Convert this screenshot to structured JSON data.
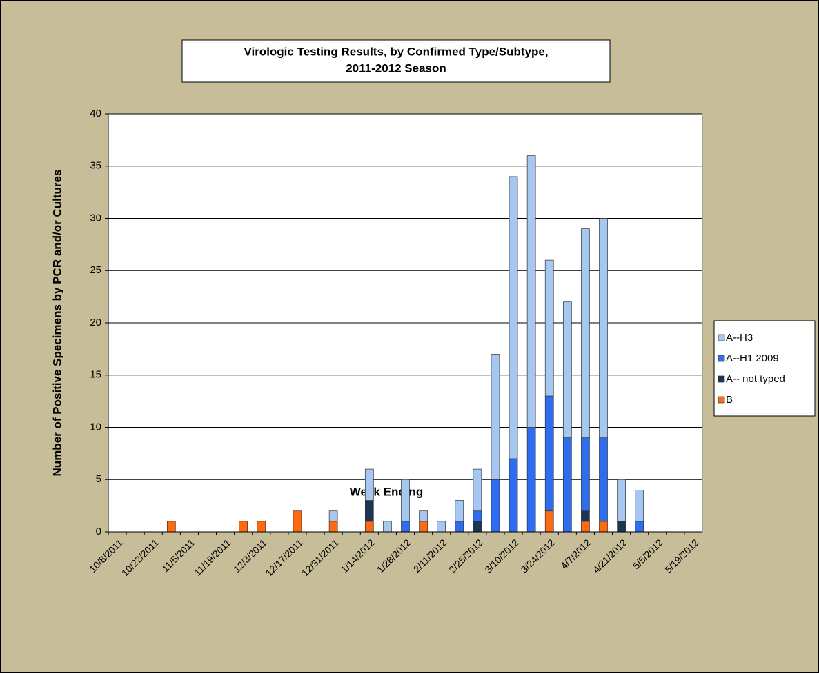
{
  "chart_data": {
    "type": "bar",
    "stacked": true,
    "title": [
      "Virologic Testing Results, by Confirmed Type/Subtype,",
      "2011-2012 Season"
    ],
    "x_label": "Week Ending",
    "y_label": "Number of Positive Specimens by PCR and/or Cultures",
    "categories": [
      "10/8/2011",
      null,
      "10/22/2011",
      null,
      "11/5/2011",
      null,
      "11/19/2011",
      null,
      "12/3/2011",
      null,
      "12/17/2011",
      null,
      "12/31/2011",
      null,
      "1/14/2012",
      null,
      "1/28/2012",
      null,
      "2/11/2012",
      null,
      "2/25/2012",
      null,
      "3/10/2012",
      null,
      "3/24/2012",
      null,
      "4/7/2012",
      null,
      "4/21/2012",
      null,
      "5/5/2012",
      null,
      "5/19/2012"
    ],
    "series": [
      {
        "name": "A--H3",
        "color": "#a6c8f0",
        "values": [
          0,
          0,
          0,
          0,
          0,
          0,
          0,
          0,
          0,
          0,
          0,
          0,
          1,
          0,
          3,
          1,
          4,
          1,
          1,
          2,
          4,
          12,
          27,
          26,
          13,
          13,
          20,
          21,
          4,
          3,
          0,
          0,
          0
        ]
      },
      {
        "name": "A--H1 2009",
        "color": "#2e6cf0",
        "values": [
          0,
          0,
          0,
          0,
          0,
          0,
          0,
          0,
          0,
          0,
          0,
          0,
          0,
          0,
          0,
          0,
          1,
          0,
          0,
          1,
          1,
          5,
          7,
          10,
          11,
          9,
          7,
          8,
          0,
          1,
          0,
          0,
          0
        ]
      },
      {
        "name": "A-- not typed",
        "color": "#1c3553",
        "values": [
          0,
          0,
          0,
          0,
          0,
          0,
          0,
          0,
          0,
          0,
          0,
          0,
          0,
          0,
          2,
          0,
          0,
          0,
          0,
          0,
          1,
          0,
          0,
          0,
          0,
          0,
          1,
          0,
          1,
          0,
          0,
          0,
          0
        ]
      },
      {
        "name": "B",
        "color": "#ff6a10",
        "values": [
          0,
          0,
          0,
          1,
          0,
          0,
          0,
          1,
          1,
          0,
          2,
          0,
          1,
          0,
          1,
          0,
          0,
          1,
          0,
          0,
          0,
          0,
          0,
          0,
          2,
          0,
          1,
          1,
          0,
          0,
          0,
          0,
          0
        ]
      }
    ],
    "ylim": [
      0,
      40
    ],
    "yticks": [
      0,
      5,
      10,
      15,
      20,
      25,
      30,
      35,
      40
    ],
    "grid": true,
    "legend": "right"
  }
}
